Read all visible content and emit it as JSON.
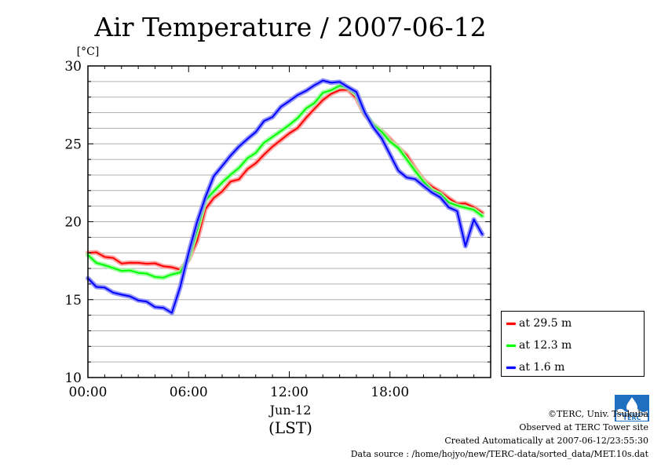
{
  "chart_data": {
    "type": "line",
    "title": "Air Temperature / 2007-06-12",
    "ylabel": "[°C]",
    "xlabel_lines": [
      "Jun-12",
      "(LST)"
    ],
    "x_ticks": [
      "00:00",
      "06:00",
      "12:00",
      "18:00"
    ],
    "y_ticks": [
      "10",
      "15",
      "20",
      "25",
      "30"
    ],
    "ylim": [
      10,
      30
    ],
    "xlim_hours": [
      0,
      24
    ],
    "grid": true,
    "legend_position": "right-bottom",
    "series": [
      {
        "name": "at 29.5 m",
        "color": "#ff0000",
        "glow": "#ff9999",
        "hours": [
          0,
          0.5,
          1,
          1.5,
          2,
          2.5,
          3,
          3.5,
          4,
          4.5,
          5,
          5.5,
          6,
          6.5,
          7,
          7.5,
          8,
          8.5,
          9,
          9.5,
          10,
          10.5,
          11,
          11.5,
          12,
          12.5,
          13,
          13.5,
          14,
          14.5,
          15,
          15.5,
          16,
          16.5,
          17,
          17.5,
          18,
          18.5,
          19,
          19.5,
          20,
          20.5,
          21,
          21.5,
          22,
          22.5,
          23,
          23.5
        ],
        "values": [
          18.0,
          18.0,
          17.8,
          17.6,
          17.4,
          17.3,
          17.4,
          17.3,
          17.3,
          17.2,
          17.0,
          17.0,
          17.5,
          18.8,
          20.8,
          21.5,
          22.0,
          22.5,
          22.8,
          23.3,
          23.8,
          24.3,
          24.8,
          25.3,
          25.6,
          26.1,
          26.6,
          27.3,
          27.8,
          28.2,
          28.5,
          28.4,
          28.0,
          26.8,
          26.3,
          25.8,
          25.3,
          24.8,
          24.2,
          23.5,
          22.6,
          22.3,
          21.9,
          21.5,
          21.2,
          21.1,
          21.0,
          20.5
        ]
      },
      {
        "name": "at 12.3 m",
        "color": "#00ff00",
        "glow": "#99ff99",
        "hours": [
          0,
          0.5,
          1,
          1.5,
          2,
          2.5,
          3,
          3.5,
          4,
          4.5,
          5,
          5.5,
          6,
          6.5,
          7,
          7.5,
          8,
          8.5,
          9,
          9.5,
          10,
          10.5,
          11,
          11.5,
          12,
          12.5,
          13,
          13.5,
          14,
          14.5,
          15,
          15.5,
          16,
          16.5,
          17,
          17.5,
          18,
          18.5,
          19,
          19.5,
          20,
          20.5,
          21,
          21.5,
          22,
          22.5,
          23,
          23.5
        ],
        "values": [
          17.8,
          17.4,
          17.2,
          17.0,
          16.9,
          16.8,
          16.8,
          16.6,
          16.5,
          16.4,
          16.6,
          16.8,
          17.6,
          19.5,
          21.3,
          22.0,
          22.5,
          23.0,
          23.5,
          24.0,
          24.5,
          25.0,
          25.5,
          25.8,
          26.2,
          26.7,
          27.2,
          27.7,
          28.2,
          28.5,
          28.7,
          28.6,
          28.2,
          26.9,
          26.3,
          25.7,
          25.2,
          24.7,
          24.0,
          23.3,
          22.5,
          22.1,
          21.7,
          21.3,
          21.0,
          20.9,
          20.8,
          20.3
        ]
      },
      {
        "name": "at 1.6 m",
        "color": "#0000ff",
        "glow": "#8888ff",
        "hours": [
          0,
          0.5,
          1,
          1.5,
          2,
          2.5,
          3,
          3.5,
          4,
          4.5,
          5,
          5.5,
          6,
          6.5,
          7,
          7.5,
          8,
          8.5,
          9,
          9.5,
          10,
          10.5,
          11,
          11.5,
          12,
          12.5,
          13,
          13.5,
          14,
          14.5,
          15,
          15.5,
          16,
          16.5,
          17,
          17.5,
          18,
          18.5,
          19,
          19.5,
          20,
          20.5,
          21,
          21.5,
          22,
          22.5,
          23,
          23.5
        ],
        "values": [
          16.3,
          15.9,
          15.7,
          15.5,
          15.3,
          15.2,
          15.0,
          14.8,
          14.6,
          14.4,
          14.2,
          15.8,
          18.0,
          20.0,
          21.5,
          23.0,
          23.5,
          24.3,
          24.8,
          25.3,
          25.8,
          26.4,
          26.8,
          27.3,
          27.8,
          28.1,
          28.4,
          28.8,
          29.0,
          29.0,
          28.9,
          28.7,
          28.3,
          27.0,
          26.1,
          25.3,
          24.4,
          23.2,
          22.9,
          22.7,
          22.3,
          21.9,
          21.5,
          21.0,
          20.6,
          18.5,
          20.1,
          19.2
        ]
      }
    ]
  },
  "legend": {
    "items": [
      {
        "label": "at 29.5 m",
        "color": "#ff0000"
      },
      {
        "label": "at 12.3 m",
        "color": "#00ff00"
      },
      {
        "label": "at 1.6 m",
        "color": "#0000ff"
      }
    ]
  },
  "footer": {
    "copyright": "©TERC, Univ. Tsukuba",
    "site": "Observed at TERC Tower site",
    "created": "Created Automatically at 2007-06-12/23:55:30",
    "source": "Data source : /home/hojyo/new/TERC-data/sorted_data/MET.10s.dat",
    "logo_text": "TERC"
  }
}
